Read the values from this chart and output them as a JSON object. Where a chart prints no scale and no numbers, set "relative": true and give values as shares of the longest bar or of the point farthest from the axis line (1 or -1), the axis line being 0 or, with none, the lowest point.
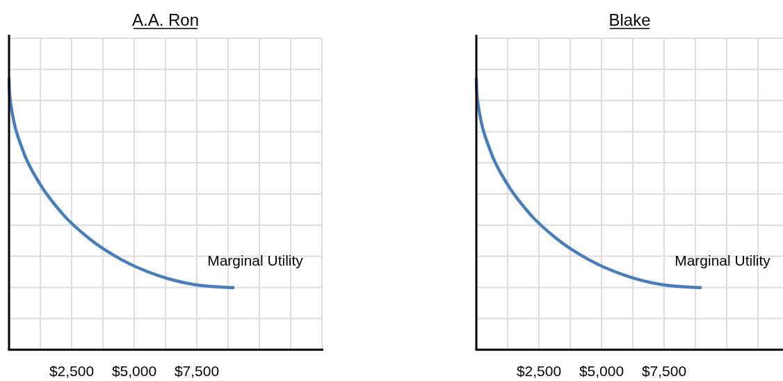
{
  "chart_data": [
    {
      "type": "line",
      "title": "A.A. Ron",
      "relative": true,
      "xlim": [
        0,
        12500
      ],
      "xticks": [
        {
          "value": 1250,
          "label": null
        },
        {
          "value": 2500,
          "label": "$2,500"
        },
        {
          "value": 3750,
          "label": null
        },
        {
          "value": 5000,
          "label": "$5,000"
        },
        {
          "value": 6250,
          "label": null
        },
        {
          "value": 7500,
          "label": "$7,500"
        },
        {
          "value": 8750,
          "label": null
        },
        {
          "value": 10000,
          "label": null
        },
        {
          "value": 11250,
          "label": null
        },
        {
          "value": 12500,
          "label": null
        }
      ],
      "series": [
        {
          "color": "#4a7ebb",
          "x": [
            0,
            12,
            49,
            137,
            543,
            1206,
            2106,
            3215,
            4500,
            5922,
            7434,
            9000
          ],
          "values": [
            1.0,
            0.959,
            0.919,
            0.866,
            0.736,
            0.614,
            0.503,
            0.408,
            0.331,
            0.274,
            0.239,
            0.228
          ]
        }
      ],
      "annotations": [
        "Marginal Utility"
      ],
      "grid": true,
      "marker": "none",
      "line_style": "solid",
      "tick_labels": "x"
    },
    {
      "type": "line",
      "title": "Blake",
      "relative": true,
      "xlim": [
        0,
        12250
      ],
      "xticks": [
        {
          "value": 1250,
          "label": null
        },
        {
          "value": 2500,
          "label": "$2,500"
        },
        {
          "value": 3750,
          "label": null
        },
        {
          "value": 5000,
          "label": "$5,000"
        },
        {
          "value": 6250,
          "label": null
        },
        {
          "value": 7500,
          "label": "$7,500"
        },
        {
          "value": 8750,
          "label": null
        },
        {
          "value": 10000,
          "label": null
        },
        {
          "value": 11250,
          "label": null
        }
      ],
      "series": [
        {
          "color": "#4a7ebb",
          "x": [
            0,
            12,
            49,
            137,
            543,
            1206,
            2106,
            3215,
            4500,
            5922,
            7434,
            9000
          ],
          "values": [
            1.0,
            0.959,
            0.919,
            0.866,
            0.736,
            0.614,
            0.503,
            0.408,
            0.331,
            0.274,
            0.239,
            0.228
          ]
        }
      ],
      "annotations": [
        "Marginal Utility"
      ],
      "grid": true,
      "marker": "none",
      "line_style": "solid",
      "tick_labels": "x"
    }
  ]
}
